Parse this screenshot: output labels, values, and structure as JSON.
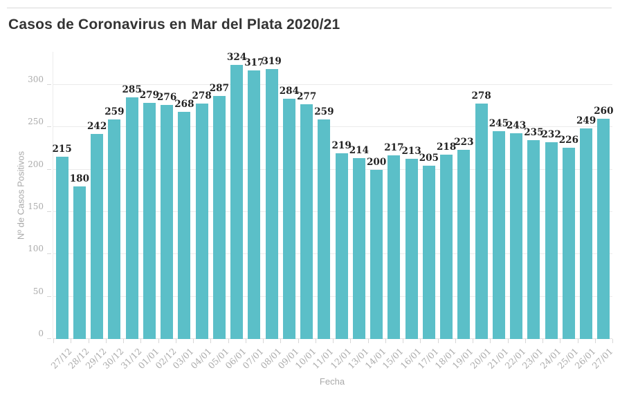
{
  "page": {
    "title": "Casos de Coronavirus en Mar del Plata 2020/21"
  },
  "colors": {
    "bar": "#5bbfc8",
    "title_text": "#333333",
    "axis_text": "#ababab",
    "value_label_text": "#222222",
    "gridline": "#ebebeb",
    "top_rule": "#d9d9d9"
  },
  "chart_data": {
    "type": "bar",
    "title": "Casos de Coronavirus en Mar del Plata 2020/21",
    "xlabel": "Fecha",
    "ylabel": "Nº de Casos Positivos",
    "ylim": [
      0,
      340
    ],
    "yticks": [
      0,
      50,
      100,
      150,
      200,
      250,
      300
    ],
    "grid": true,
    "legend": "none",
    "bar_color": "#5bbfc8",
    "categories": [
      "27/12",
      "28/12",
      "29/12",
      "30/12",
      "31/12",
      "01/01",
      "02/12",
      "03/01",
      "04/01",
      "05/01",
      "06/01",
      "07/01",
      "08/01",
      "09/01",
      "10/01",
      "11/01",
      "12/01",
      "13/01",
      "14/01",
      "15/01",
      "16/01",
      "17/01",
      "18/01",
      "19/01",
      "20/01",
      "21/01",
      "22/01",
      "23/01",
      "24/01",
      "25/01",
      "26/01",
      "27/01"
    ],
    "values": [
      215,
      180,
      242,
      259,
      285,
      279,
      276,
      268,
      278,
      287,
      324,
      317,
      319,
      284,
      277,
      259,
      219,
      214,
      200,
      217,
      213,
      205,
      218,
      223,
      278,
      245,
      243,
      235,
      232,
      226,
      249,
      260
    ]
  }
}
